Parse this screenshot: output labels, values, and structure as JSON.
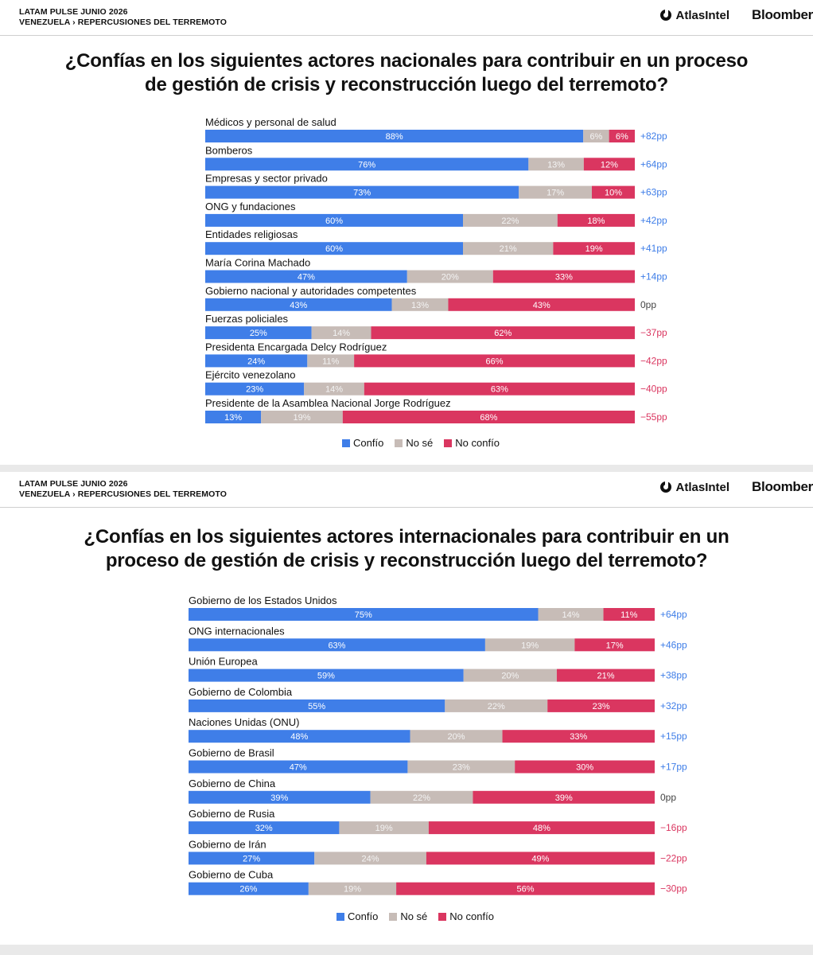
{
  "header": {
    "line1": "LATAM PULSE JUNIO 2026",
    "line2": "VENEZUELA › REPERCUSIONES DEL TERREMOTO",
    "brand1": "AtlasIntel",
    "brand2": "Bloomber"
  },
  "colors": {
    "confio": "#3f7ee8",
    "nose": "#c7bcb7",
    "noconfio": "#da3660",
    "diff_pos": "#3f7ee8",
    "diff_neg": "#da3660",
    "diff_zero": "#444444"
  },
  "legend": {
    "confio": "Confío",
    "nose": "No sé",
    "noconfio": "No confío"
  },
  "chart_data": [
    {
      "type": "bar",
      "title": "¿Confías en los siguientes actores nacionales para contribuir en un proceso de gestión de crisis y reconstrucción luego del terremoto?",
      "title_lines": [
        "¿Confías en los siguientes actores nacionales para contribuir en un proceso",
        "de gestión de crisis y reconstrucción luego del terremoto?"
      ],
      "stacked": true,
      "categories": [
        "Médicos y personal de salud",
        "Bomberos",
        "Empresas y sector privado",
        "ONG y fundaciones",
        "Entidades religiosas",
        "María Corina Machado",
        "Gobierno nacional y autoridades competentes",
        "Fuerzas policiales",
        "Presidenta Encargada Delcy Rodríguez",
        "Ejército venezolano",
        "Presidente de la Asamblea Nacional Jorge Rodríguez"
      ],
      "series": [
        {
          "name": "Confío",
          "values": [
            88,
            76,
            73,
            60,
            60,
            47,
            43,
            25,
            24,
            23,
            13
          ]
        },
        {
          "name": "No sé",
          "values": [
            6,
            13,
            17,
            22,
            21,
            20,
            13,
            14,
            11,
            14,
            19
          ]
        },
        {
          "name": "No confío",
          "values": [
            6,
            12,
            10,
            18,
            19,
            33,
            43,
            62,
            66,
            63,
            68
          ]
        }
      ],
      "net": [
        "+82pp",
        "+64pp",
        "+63pp",
        "+42pp",
        "+41pp",
        "+14pp",
        "0pp",
        "−37pp",
        "−42pp",
        "−40pp",
        "−55pp"
      ],
      "legend_position": "bottom"
    },
    {
      "type": "bar",
      "title": "¿Confías en los siguientes actores internacionales para contribuir en un proceso de gestión de crisis y reconstrucción luego del terremoto?",
      "title_lines": [
        "¿Confías en los siguientes actores internacionales para contribuir en un",
        "proceso de gestión de crisis y reconstrucción luego del terremoto?"
      ],
      "stacked": true,
      "categories": [
        "Gobierno de los Estados Unidos",
        "ONG internacionales",
        "Unión Europea",
        "Gobierno de Colombia",
        "Naciones Unidas (ONU)",
        "Gobierno de Brasil",
        "Gobierno de China",
        "Gobierno de Rusia",
        "Gobierno de Irán",
        "Gobierno de Cuba"
      ],
      "series": [
        {
          "name": "Confío",
          "values": [
            75,
            63,
            59,
            55,
            48,
            47,
            39,
            32,
            27,
            26
          ]
        },
        {
          "name": "No sé",
          "values": [
            14,
            19,
            20,
            22,
            20,
            23,
            22,
            19,
            24,
            19
          ]
        },
        {
          "name": "No confío",
          "values": [
            11,
            17,
            21,
            23,
            33,
            30,
            39,
            48,
            49,
            56
          ]
        }
      ],
      "net": [
        "+64pp",
        "+46pp",
        "+38pp",
        "+32pp",
        "+15pp",
        "+17pp",
        "0pp",
        "−16pp",
        "−22pp",
        "−30pp"
      ],
      "legend_position": "bottom"
    }
  ]
}
